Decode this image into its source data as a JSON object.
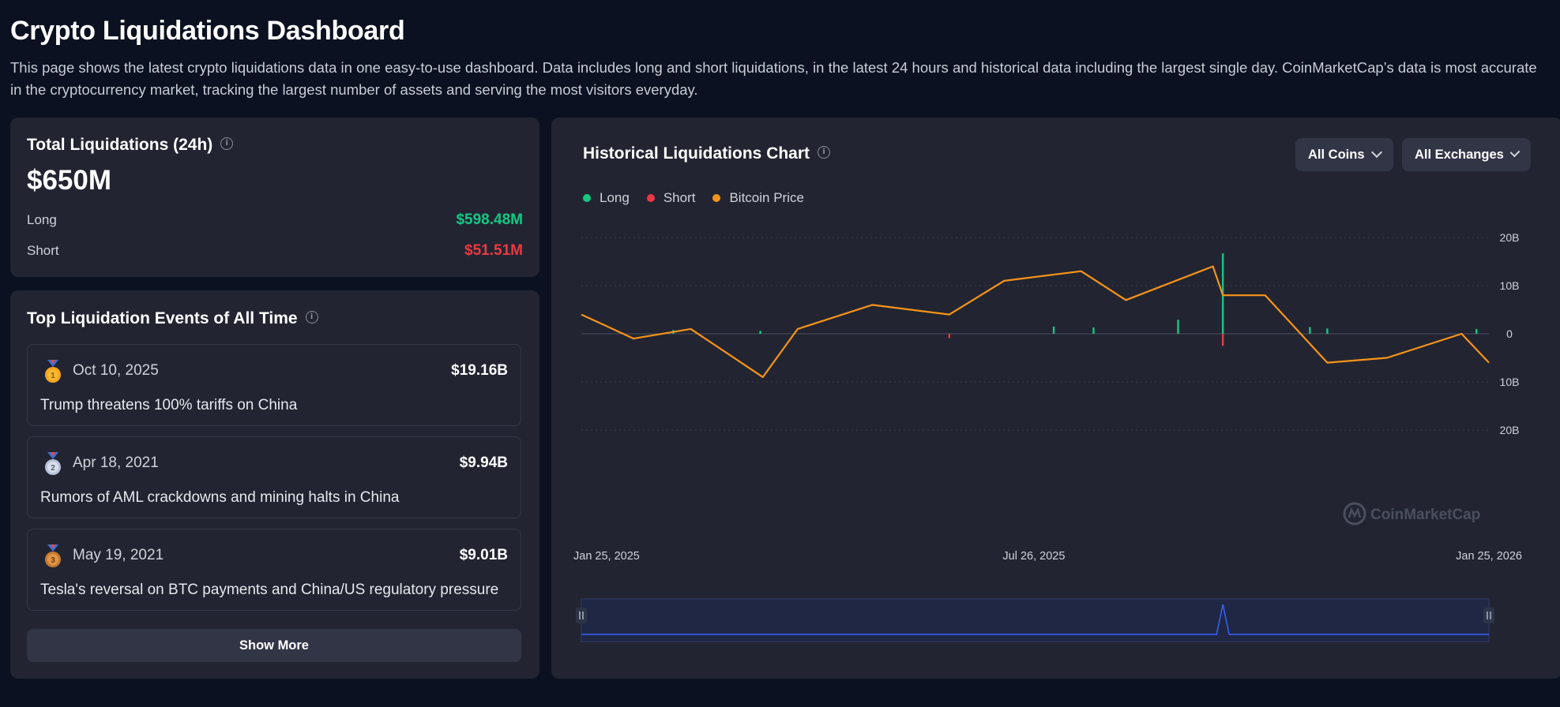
{
  "page": {
    "title": "Crypto Liquidations Dashboard",
    "description": "This page shows the latest crypto liquidations data in one easy-to-use dashboard. Data includes long and short liquidations, in the latest 24 hours and historical data including the largest single day. CoinMarketCap’s data is most accurate in the cryptocurrency market, tracking the largest number of assets and serving the most visitors everyday."
  },
  "total": {
    "title": "Total Liquidations (24h)",
    "value": "$650M",
    "long_label": "Long",
    "long_value": "$598.48M",
    "short_label": "Short",
    "short_value": "$51.51M"
  },
  "events": {
    "title": "Top Liquidation Events of All Time",
    "items": [
      {
        "rank": "1",
        "date": "Oct 10, 2025",
        "amount": "$19.16B",
        "description": "Trump threatens 100% tariffs on China"
      },
      {
        "rank": "2",
        "date": "Apr 18, 2021",
        "amount": "$9.94B",
        "description": "Rumors of AML crackdowns and mining halts in China"
      },
      {
        "rank": "3",
        "date": "May 19, 2021",
        "amount": "$9.01B",
        "description": "Tesla's reversal on BTC payments and China/US regulatory pressure"
      }
    ],
    "show_more": "Show More"
  },
  "chart_panel": {
    "title": "Historical Liquidations Chart",
    "coins_dropdown": "All Coins",
    "exchanges_dropdown": "All Exchanges",
    "watermark": "CoinMarketCap"
  },
  "colors": {
    "long": "#16c784",
    "short": "#ea3943",
    "price": "#f7931a",
    "navigator": "#3861fb"
  },
  "chart_data": {
    "type": "bar",
    "legend": [
      "Long",
      "Short",
      "Bitcoin Price"
    ],
    "y_tick_labels": [
      "20B",
      "10B",
      "0",
      "10B",
      "20B"
    ],
    "ylim": [
      -20,
      20
    ],
    "x_tick_labels": [
      "Jan 25, 2025",
      "Jul 26, 2025",
      "Jan 25, 2026"
    ],
    "series": [
      {
        "name": "Long",
        "points": [
          {
            "x": "2025-03-03",
            "y": 0.8
          },
          {
            "x": "2025-04-07",
            "y": 0.6
          },
          {
            "x": "2025-08-03",
            "y": 1.5
          },
          {
            "x": "2025-08-19",
            "y": 1.3
          },
          {
            "x": "2025-09-22",
            "y": 2.9
          },
          {
            "x": "2025-10-10",
            "y": 16.7
          },
          {
            "x": "2025-11-14",
            "y": 1.4
          },
          {
            "x": "2025-11-21",
            "y": 1.1
          },
          {
            "x": "2026-01-20",
            "y": 1.0
          }
        ]
      },
      {
        "name": "Short",
        "points": [
          {
            "x": "2025-06-22",
            "y": 0.9
          },
          {
            "x": "2025-10-10",
            "y": 2.5
          }
        ]
      },
      {
        "name": "Bitcoin Price",
        "x": [
          "2025-01-25",
          "2025-02-15",
          "2025-03-10",
          "2025-04-08",
          "2025-04-22",
          "2025-05-22",
          "2025-06-22",
          "2025-07-14",
          "2025-08-14",
          "2025-09-01",
          "2025-10-06",
          "2025-10-10",
          "2025-10-27",
          "2025-11-21",
          "2025-12-15",
          "2026-01-14",
          "2026-01-25"
        ],
        "values": [
          4,
          -1,
          1,
          -9,
          1,
          6,
          4,
          11,
          13,
          7,
          14,
          8,
          8,
          -6,
          -5,
          0,
          -6
        ]
      }
    ],
    "navigator": {
      "peak_x": "2025-10-10"
    }
  }
}
